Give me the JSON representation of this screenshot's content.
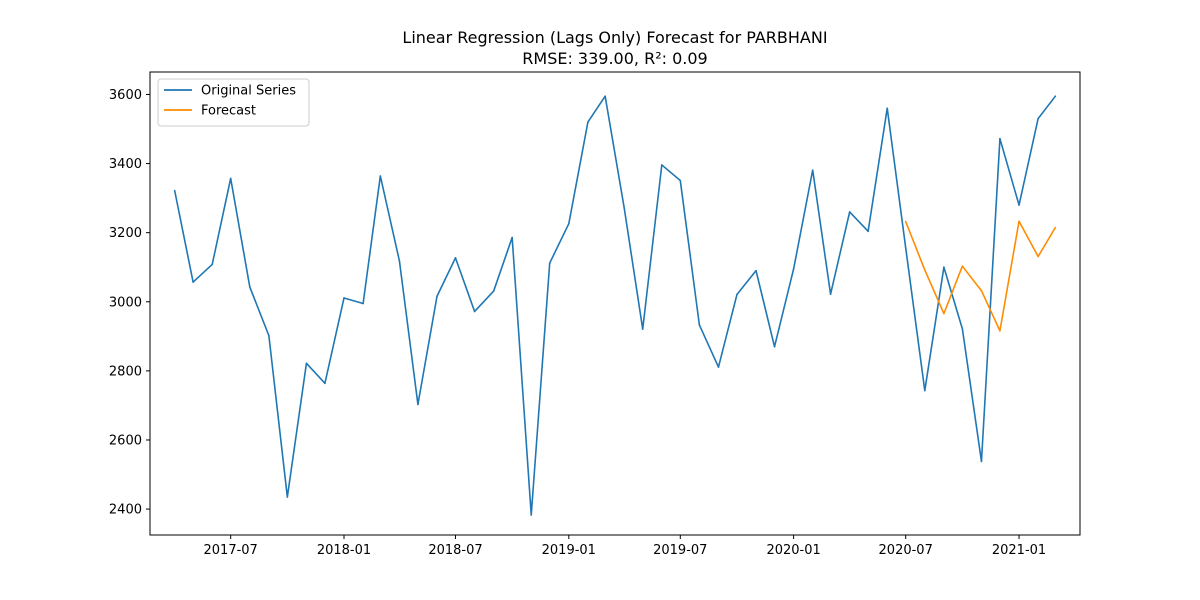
{
  "chart_data": {
    "type": "line",
    "title": "Linear Regression (Lags Only) Forecast for PARBHANI",
    "subtitle": "RMSE: 339.00, R²: 0.09",
    "xlabel": "",
    "ylabel": "",
    "xlim": [
      "2017-02-20",
      "2021-04-10"
    ],
    "ylim": [
      2325,
      3665
    ],
    "x_ticks": [
      "2017-07-01",
      "2018-01-01",
      "2018-07-01",
      "2019-01-01",
      "2019-07-01",
      "2020-01-01",
      "2020-07-01",
      "2021-01-01"
    ],
    "x_tick_labels": [
      "2017-07",
      "2018-01",
      "2018-07",
      "2019-01",
      "2019-07",
      "2020-01",
      "2020-07",
      "2021-01"
    ],
    "y_ticks": [
      2400,
      2600,
      2800,
      3000,
      3200,
      3400,
      3600
    ],
    "y_tick_labels": [
      "2400",
      "2600",
      "2800",
      "3000",
      "3200",
      "3400",
      "3600"
    ],
    "grid": false,
    "legend": {
      "position": "top-left"
    },
    "series": [
      {
        "name": "Original Series",
        "color": "#1f77b4",
        "x": [
          "2017-04-01",
          "2017-05-01",
          "2017-06-01",
          "2017-07-01",
          "2017-08-01",
          "2017-09-01",
          "2017-10-01",
          "2017-11-01",
          "2017-12-01",
          "2018-01-01",
          "2018-02-01",
          "2018-03-01",
          "2018-04-01",
          "2018-05-01",
          "2018-06-01",
          "2018-07-01",
          "2018-08-01",
          "2018-09-01",
          "2018-10-01",
          "2018-11-01",
          "2018-12-01",
          "2019-01-01",
          "2019-02-01",
          "2019-03-01",
          "2019-04-01",
          "2019-05-01",
          "2019-06-01",
          "2019-07-01",
          "2019-08-01",
          "2019-09-01",
          "2019-10-01",
          "2019-11-01",
          "2019-12-01",
          "2020-01-01",
          "2020-02-01",
          "2020-03-01",
          "2020-04-01",
          "2020-05-01",
          "2020-06-01",
          "2020-07-01",
          "2020-08-01",
          "2020-09-01",
          "2020-10-01",
          "2020-11-01",
          "2020-12-01",
          "2021-01-01",
          "2021-02-01",
          "2021-03-01"
        ],
        "values": [
          3322,
          3057,
          3108,
          3357,
          3043,
          2902,
          2435,
          2822,
          2764,
          3011,
          2995,
          3364,
          3118,
          2703,
          3016,
          3127,
          2972,
          3031,
          3186,
          2383,
          3112,
          3226,
          3520,
          3595,
          3271,
          2921,
          3396,
          3351,
          2933,
          2811,
          3021,
          3090,
          2870,
          3095,
          3381,
          3022,
          3260,
          3204,
          3560,
          3156,
          2743,
          3100,
          2922,
          2538,
          3472,
          3280,
          3530,
          3595
        ]
      },
      {
        "name": "Forecast",
        "color": "#ff8c00",
        "x": [
          "2020-07-01",
          "2020-08-01",
          "2020-09-01",
          "2020-10-01",
          "2020-11-01",
          "2020-12-01",
          "2021-01-01",
          "2021-02-01",
          "2021-03-01"
        ],
        "values": [
          3232,
          3092,
          2966,
          3103,
          3032,
          2916,
          3233,
          3131,
          3215
        ]
      }
    ]
  }
}
